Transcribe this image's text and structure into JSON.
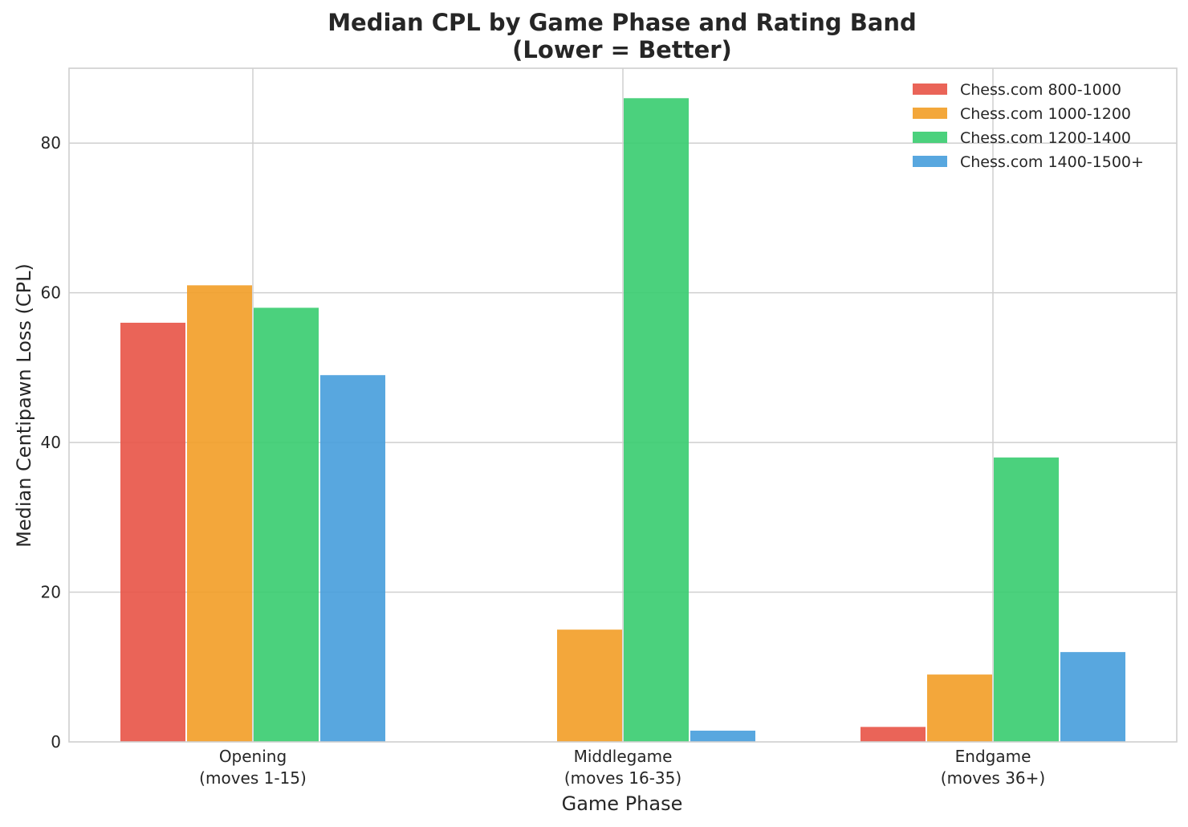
{
  "chart_data": {
    "type": "bar",
    "title_lines": [
      "Median CPL by Game Phase and Rating Band",
      "(Lower = Better)"
    ],
    "xlabel": "Game Phase",
    "ylabel": "Median Centipawn Loss (CPL)",
    "categories": [
      [
        "Opening",
        "(moves 1-15)"
      ],
      [
        "Middlegame",
        "(moves 16-35)"
      ],
      [
        "Endgame",
        "(moves 36+)"
      ]
    ],
    "series": [
      {
        "name": "Chess.com 800-1000",
        "color": "#e8574a",
        "values": [
          56,
          0,
          2
        ]
      },
      {
        "name": "Chess.com 1000-1200",
        "color": "#f2a02a",
        "values": [
          61,
          15,
          9
        ]
      },
      {
        "name": "Chess.com 1200-1400",
        "color": "#3ccd72",
        "values": [
          58,
          86,
          38
        ]
      },
      {
        "name": "Chess.com 1400-1500+",
        "color": "#4aa0dc",
        "values": [
          49,
          1.5,
          12
        ]
      }
    ],
    "ylim": [
      0,
      90
    ],
    "yticks": [
      0,
      20,
      40,
      60,
      80
    ],
    "grid": true,
    "legend_position": "top-right"
  }
}
